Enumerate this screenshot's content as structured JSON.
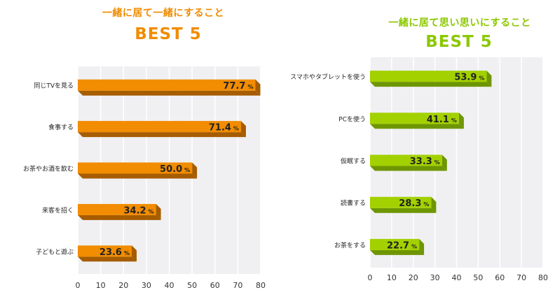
{
  "chart_data": [
    {
      "type": "bar",
      "orientation": "horizontal",
      "title": "一緒に居て一緒にすること",
      "subtitle": "BEST 5",
      "title_color": "#f08c00",
      "bar_color": "#f28c00",
      "bar_shadow_color": "#a65c00",
      "categories": [
        "同じTVを見る",
        "食事する",
        "お茶やお酒を飲む",
        "来客を招く",
        "子どもと遊ぶ"
      ],
      "values": [
        77.7,
        71.4,
        50.0,
        34.2,
        23.6
      ],
      "value_unit": "%",
      "xlim": [
        0,
        80
      ],
      "xticks": [
        0,
        10,
        20,
        30,
        40,
        50,
        60,
        70,
        80
      ],
      "grid": true
    },
    {
      "type": "bar",
      "orientation": "horizontal",
      "title": "一緒に居て思い思いにすること",
      "subtitle": "BEST 5",
      "title_color": "#8cc800",
      "bar_color": "#a3d100",
      "bar_shadow_color": "#6e9600",
      "categories": [
        "スマホやタブレットを使う",
        "PCを使う",
        "仮眠する",
        "読書する",
        "お茶をする"
      ],
      "values": [
        53.9,
        41.1,
        33.3,
        28.3,
        22.7
      ],
      "value_unit": "%",
      "xlim": [
        0,
        80
      ],
      "xticks": [
        0,
        10,
        20,
        30,
        40,
        50,
        60,
        70,
        80
      ],
      "grid": true
    }
  ]
}
